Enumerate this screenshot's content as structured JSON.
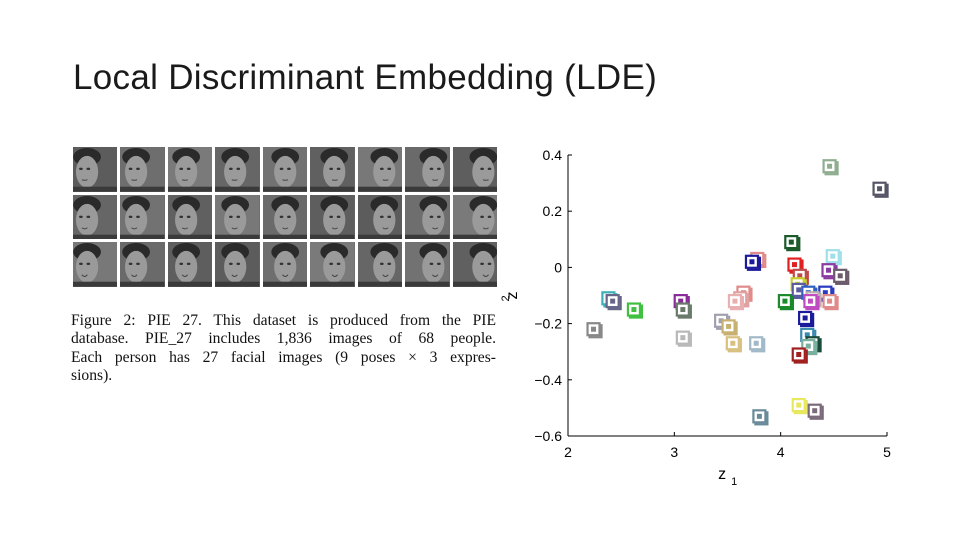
{
  "slide": {
    "title": "Local Discriminant Embedding (LDE)"
  },
  "figure": {
    "face_grid": {
      "rows": 3,
      "cols": 9
    },
    "caption_lines": [
      "Figure 2:  PIE 27.  This dataset is produced from the PIE",
      "database.   PIE_27 includes 1,836 images of 68 people.",
      "Each person has 27 facial images (9 poses × 3 expres-",
      "sions)."
    ]
  },
  "chart_data": {
    "type": "scatter",
    "xlabel": "z",
    "xlabel_sub": "1",
    "ylabel": "z",
    "ylabel_sub": "2",
    "xlim": [
      2,
      5
    ],
    "ylim": [
      -0.6,
      0.4
    ],
    "x_ticks": [
      2,
      3,
      4,
      5
    ],
    "x_tick_labels": [
      "2",
      "3",
      "4",
      "5"
    ],
    "y_ticks": [
      0.4,
      0.2,
      0,
      -0.2,
      -0.4,
      -0.6
    ],
    "y_tick_labels": [
      "0.4",
      "0.2",
      "0",
      "−0.2",
      "−0.4",
      "−0.6"
    ],
    "points": [
      {
        "x": 4.46,
        "y": 0.36,
        "color": "#8fae90"
      },
      {
        "x": 4.93,
        "y": 0.28,
        "color": "#555566"
      },
      {
        "x": 4.1,
        "y": 0.09,
        "color": "#1a5a2a"
      },
      {
        "x": 3.78,
        "y": 0.03,
        "color": "#e08a8a"
      },
      {
        "x": 3.73,
        "y": 0.02,
        "color": "#1a1a9a"
      },
      {
        "x": 4.13,
        "y": 0.01,
        "color": "#e02020"
      },
      {
        "x": 4.49,
        "y": 0.04,
        "color": "#a0e0e8"
      },
      {
        "x": 4.45,
        "y": -0.01,
        "color": "#8a3aa0"
      },
      {
        "x": 4.56,
        "y": -0.03,
        "color": "#6a5a6a"
      },
      {
        "x": 4.18,
        "y": -0.03,
        "color": "#c04a4a"
      },
      {
        "x": 4.16,
        "y": -0.06,
        "color": "#c8d030"
      },
      {
        "x": 4.17,
        "y": -0.08,
        "color": "#5a5aa0"
      },
      {
        "x": 4.26,
        "y": -0.09,
        "color": "#3060c0"
      },
      {
        "x": 4.42,
        "y": -0.09,
        "color": "#2a3ac0"
      },
      {
        "x": 4.3,
        "y": -0.11,
        "color": "#c0b0b0"
      },
      {
        "x": 4.46,
        "y": -0.12,
        "color": "#e08a8a"
      },
      {
        "x": 4.04,
        "y": -0.12,
        "color": "#1a8a2a"
      },
      {
        "x": 4.28,
        "y": -0.12,
        "color": "#c04ac0"
      },
      {
        "x": 3.65,
        "y": -0.09,
        "color": "#e08a8a"
      },
      {
        "x": 3.62,
        "y": -0.11,
        "color": "#e0a0a0"
      },
      {
        "x": 3.57,
        "y": -0.12,
        "color": "#e8b0b0"
      },
      {
        "x": 2.38,
        "y": -0.11,
        "color": "#3ab0b8"
      },
      {
        "x": 2.42,
        "y": -0.12,
        "color": "#666688"
      },
      {
        "x": 2.62,
        "y": -0.15,
        "color": "#40c040"
      },
      {
        "x": 3.06,
        "y": -0.12,
        "color": "#8a2a9a"
      },
      {
        "x": 3.08,
        "y": -0.15,
        "color": "#6a7a6a"
      },
      {
        "x": 2.24,
        "y": -0.22,
        "color": "#888888"
      },
      {
        "x": 3.44,
        "y": -0.19,
        "color": "#a0a0b0"
      },
      {
        "x": 3.51,
        "y": -0.21,
        "color": "#c8b070"
      },
      {
        "x": 3.08,
        "y": -0.25,
        "color": "#b8b8b8"
      },
      {
        "x": 3.55,
        "y": -0.27,
        "color": "#d8c080"
      },
      {
        "x": 3.77,
        "y": -0.27,
        "color": "#a0b8c8"
      },
      {
        "x": 4.23,
        "y": -0.18,
        "color": "#1a1a9a"
      },
      {
        "x": 4.25,
        "y": -0.24,
        "color": "#3a8ab0"
      },
      {
        "x": 4.3,
        "y": -0.27,
        "color": "#1a4a3a"
      },
      {
        "x": 4.26,
        "y": -0.28,
        "color": "#7ab0a0"
      },
      {
        "x": 4.17,
        "y": -0.31,
        "color": "#a02020"
      },
      {
        "x": 3.8,
        "y": -0.53,
        "color": "#6a8a9a"
      },
      {
        "x": 4.17,
        "y": -0.49,
        "color": "#e8e860"
      },
      {
        "x": 4.32,
        "y": -0.51,
        "color": "#7a6a7a"
      }
    ]
  }
}
